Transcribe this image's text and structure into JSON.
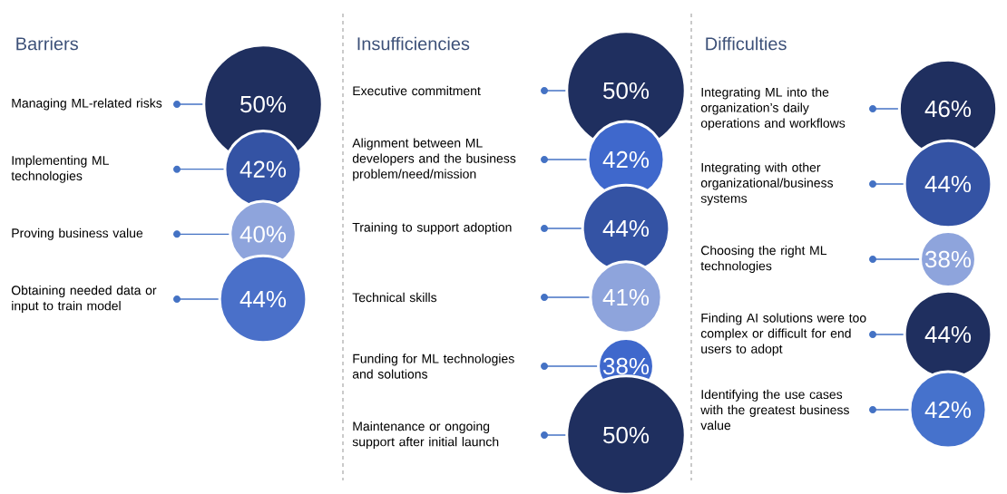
{
  "chart_data": [
    {
      "type": "other",
      "title": "Barriers",
      "categories": [
        "Managing ML-related risks",
        "Implementing ML technologies",
        "Proving business value",
        "Obtaining needed data or input to train model"
      ],
      "values": [
        50,
        42,
        40,
        44
      ],
      "value_labels": [
        "50%",
        "42%",
        "40%",
        "44%"
      ],
      "colors": [
        "#1f2f5f",
        "#3453a4",
        "#8ea4dc",
        "#4a70c9"
      ]
    },
    {
      "type": "other",
      "title": "Insufficiencies",
      "categories": [
        "Executive commitment",
        "Alignment between ML developers and the business problem/need/mission",
        "Training to support adoption",
        "Technical skills",
        "Funding for ML technologies and solutions",
        "Maintenance or ongoing support after initial launch"
      ],
      "values": [
        50,
        42,
        44,
        41,
        38,
        50
      ],
      "value_labels": [
        "50%",
        "42%",
        "44%",
        "41%",
        "38%",
        "50%"
      ],
      "colors": [
        "#1f2f5f",
        "#3f68cc",
        "#3453a4",
        "#8ea4dc",
        "#3f68cc",
        "#1f2f5f"
      ]
    },
    {
      "type": "other",
      "title": "Difficulties",
      "categories": [
        "Integrating ML into the organization’s daily operations and workflows",
        "Integrating with other organizational/business systems",
        "Choosing the right ML technologies",
        "Finding AI solutions were too complex or difficult for end users to adopt",
        "Identifying the use cases with the greatest business value"
      ],
      "values": [
        46,
        44,
        38,
        44,
        42
      ],
      "value_labels": [
        "46%",
        "44%",
        "38%",
        "44%",
        "42%"
      ],
      "colors": [
        "#1f2f5f",
        "#3453a4",
        "#8ea4dc",
        "#1f2f5f",
        "#4672cc"
      ]
    }
  ]
}
